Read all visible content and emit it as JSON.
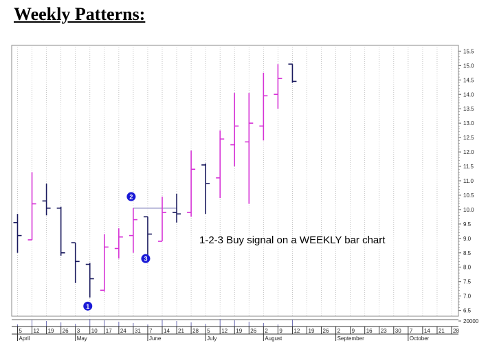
{
  "page_title": "Weekly Patterns:",
  "chart_data": {
    "type": "ohlc",
    "title": "",
    "annotation": "1-2-3 Buy signal on a WEEKLY bar chart",
    "ylim": [
      6.3,
      15.7
    ],
    "y_ticks": [
      6.5,
      7.0,
      7.5,
      8.0,
      8.5,
      9.0,
      9.5,
      10.0,
      10.5,
      11.0,
      11.5,
      12.0,
      12.5,
      13.0,
      13.5,
      14.0,
      14.5,
      15.0,
      15.5
    ],
    "y_tick_labels": [
      "6.5",
      "7.0",
      "7.5",
      "8.0",
      "8.5",
      "9.0",
      "9.5",
      "10.0",
      "10.5",
      "11.0",
      "11.5",
      "12.0",
      "12.5",
      "13.0",
      "13.5",
      "14.0",
      "14.5",
      "15.0",
      "15.5"
    ],
    "volume_label": "20000",
    "x_tick_labels": [
      "5",
      "12",
      "19",
      "26",
      "3",
      "10",
      "17",
      "24",
      "31",
      "7",
      "14",
      "21",
      "28",
      "5",
      "12",
      "19",
      "26",
      "2",
      "9",
      "12",
      "19",
      "26",
      "2",
      "9",
      "16",
      "23",
      "30",
      "7",
      "14",
      "21",
      "28"
    ],
    "month_labels": [
      "April",
      "May",
      "June",
      "July",
      "August",
      "September",
      "October"
    ],
    "month_positions": [
      0,
      4,
      9,
      13,
      17,
      22,
      27
    ],
    "colors": {
      "down": "#1a1a5e",
      "up": "#d633d6",
      "grid": "#b8b8b8",
      "marker": "#1a1ad6",
      "resistance": "#6a6ab0"
    },
    "bars": [
      {
        "high": 9.85,
        "low": 8.5,
        "open": 9.55,
        "close": 9.1,
        "color": "down"
      },
      {
        "high": 11.3,
        "low": 8.95,
        "open": 8.95,
        "close": 10.2,
        "color": "up"
      },
      {
        "high": 10.9,
        "low": 9.8,
        "open": 10.3,
        "close": 10.05,
        "color": "down"
      },
      {
        "high": 10.1,
        "low": 8.4,
        "open": 10.05,
        "close": 8.5,
        "color": "down"
      },
      {
        "high": 8.85,
        "low": 7.45,
        "open": 8.85,
        "close": 8.2,
        "color": "down"
      },
      {
        "high": 8.15,
        "low": 6.95,
        "open": 8.1,
        "close": 7.6,
        "color": "down"
      },
      {
        "high": 9.15,
        "low": 7.15,
        "open": 7.2,
        "close": 8.7,
        "color": "up"
      },
      {
        "high": 9.35,
        "low": 8.3,
        "open": 8.65,
        "close": 9.05,
        "color": "up"
      },
      {
        "high": 10.05,
        "low": 8.5,
        "open": 9.1,
        "close": 9.65,
        "color": "up"
      },
      {
        "high": 9.75,
        "low": 8.4,
        "open": 9.75,
        "close": 9.15,
        "color": "down"
      },
      {
        "high": 10.45,
        "low": 8.9,
        "open": 8.9,
        "close": 9.9,
        "color": "up"
      },
      {
        "high": 10.55,
        "low": 9.55,
        "open": 9.9,
        "close": 9.85,
        "color": "down"
      },
      {
        "high": 12.05,
        "low": 9.75,
        "open": 9.9,
        "close": 11.4,
        "color": "up"
      },
      {
        "high": 11.6,
        "low": 9.85,
        "open": 11.55,
        "close": 10.9,
        "color": "down"
      },
      {
        "high": 12.75,
        "low": 10.4,
        "open": 11.1,
        "close": 12.45,
        "color": "up"
      },
      {
        "high": 14.05,
        "low": 11.5,
        "open": 12.25,
        "close": 12.9,
        "color": "up"
      },
      {
        "high": 14.05,
        "low": 10.2,
        "open": 12.35,
        "close": 13.0,
        "color": "up"
      },
      {
        "high": 14.75,
        "low": 12.4,
        "open": 12.9,
        "close": 13.95,
        "color": "up"
      },
      {
        "high": 15.05,
        "low": 13.5,
        "open": 14.0,
        "close": 14.55,
        "color": "up"
      },
      {
        "high": 15.05,
        "low": 14.4,
        "open": 15.05,
        "close": 14.45,
        "color": "down"
      }
    ],
    "markers": [
      {
        "label": "1",
        "bar_index": 5,
        "value": 6.65
      },
      {
        "label": "2",
        "bar_index": 8,
        "value": 10.45
      },
      {
        "label": "3",
        "bar_index": 9,
        "value": 8.3
      }
    ],
    "resistance_line": {
      "value": 10.05,
      "from_bar": 8,
      "to_bar": 11
    }
  }
}
